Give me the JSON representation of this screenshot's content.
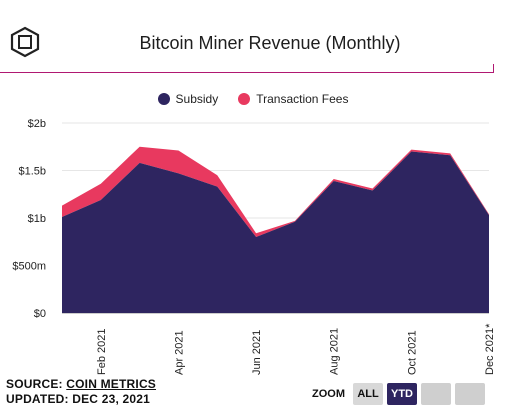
{
  "header": {
    "title": "Bitcoin Miner Revenue (Monthly)"
  },
  "footer": {
    "source_prefix": "SOURCE: ",
    "source_link": "COIN METRICS",
    "updated": "UPDATED: DEC 23, 2021"
  },
  "zoom": {
    "label": "ZOOM",
    "buttons": [
      "ALL",
      "YTD"
    ],
    "active": "YTD"
  },
  "colors": {
    "subsidy": "#2e2560",
    "fees": "#e8395f",
    "accent_rule": "#b01872"
  },
  "chart_data": {
    "type": "area",
    "title": "Bitcoin Miner Revenue (Monthly)",
    "stacked": true,
    "x": [
      "2021-01",
      "2021-02",
      "2021-03",
      "2021-04",
      "2021-05",
      "2021-06",
      "2021-07",
      "2021-08",
      "2021-09",
      "2021-10",
      "2021-11",
      "2021-12"
    ],
    "series": [
      {
        "name": "Subsidy",
        "color": "#2e2560",
        "values": [
          1.01,
          1.19,
          1.58,
          1.47,
          1.33,
          0.8,
          0.96,
          1.39,
          1.29,
          1.7,
          1.66,
          1.03
        ]
      },
      {
        "name": "Transaction Fees",
        "color": "#e8395f",
        "values": [
          0.12,
          0.17,
          0.17,
          0.24,
          0.12,
          0.04,
          0.01,
          0.02,
          0.02,
          0.02,
          0.02,
          0.01
        ]
      }
    ],
    "ylim": [
      0,
      2
    ],
    "ytick_values": [
      0,
      0.5,
      1,
      1.5,
      2
    ],
    "ytick_labels": [
      "$0",
      "$500m",
      "$1b",
      "$1.5b",
      "$2b"
    ],
    "xtick_labels": [
      "Feb 2021",
      "Apr 2021",
      "Jun 2021",
      "Aug 2021",
      "Oct 2021",
      "Dec 2021*"
    ],
    "xtick_index": [
      1,
      3,
      5,
      7,
      9,
      11
    ],
    "grid": true,
    "legend_position": "top-center"
  }
}
